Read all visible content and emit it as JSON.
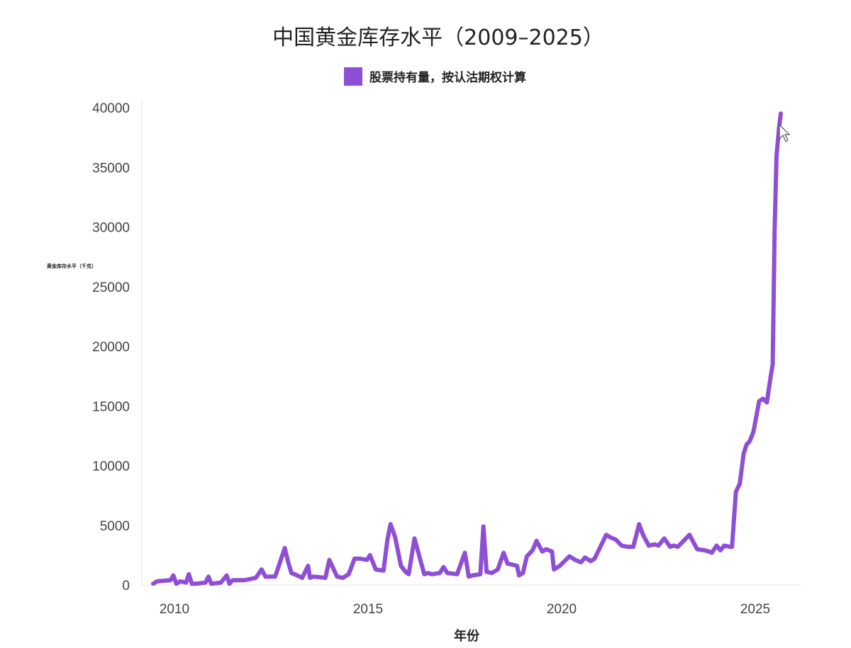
{
  "chart_data": {
    "type": "line",
    "title": "中国黄金库存水平（2009–2025）",
    "xlabel": "年份",
    "ylabel": "黄金库存水平（千克）",
    "xlim": [
      2009.5,
      2026.2
    ],
    "ylim": [
      0,
      41000
    ],
    "x_ticks": [
      2010,
      2015,
      2020,
      2025
    ],
    "y_ticks": [
      0,
      5000,
      10000,
      15000,
      20000,
      25000,
      30000,
      35000,
      40000
    ],
    "grid": false,
    "legend_position": "top-center",
    "series": [
      {
        "name": "股票持有量，按认沽期权计算",
        "color": "#8e4fd6",
        "x": [
          2009.45,
          2009.55,
          2009.9,
          2009.97,
          2010.05,
          2010.15,
          2010.3,
          2010.37,
          2010.45,
          2010.55,
          2010.8,
          2010.88,
          2010.95,
          2011.2,
          2011.35,
          2011.42,
          2011.5,
          2011.8,
          2012.1,
          2012.25,
          2012.35,
          2012.45,
          2012.6,
          2012.85,
          2012.93,
          2013.02,
          2013.1,
          2013.3,
          2013.45,
          2013.5,
          2013.58,
          2013.9,
          2014.0,
          2014.2,
          2014.35,
          2014.5,
          2014.65,
          2014.8,
          2014.97,
          2015.05,
          2015.2,
          2015.4,
          2015.5,
          2015.58,
          2015.7,
          2015.85,
          2015.97,
          2016.05,
          2016.2,
          2016.45,
          2016.55,
          2016.65,
          2016.85,
          2016.95,
          2017.05,
          2017.3,
          2017.5,
          2017.6,
          2017.7,
          2017.9,
          2017.98,
          2018.06,
          2018.2,
          2018.35,
          2018.5,
          2018.6,
          2018.85,
          2018.9,
          2019.0,
          2019.1,
          2019.25,
          2019.35,
          2019.5,
          2019.6,
          2019.75,
          2019.8,
          2019.95,
          2020.2,
          2020.35,
          2020.5,
          2020.6,
          2020.75,
          2020.85,
          2021.0,
          2021.15,
          2021.25,
          2021.4,
          2021.55,
          2021.7,
          2021.85,
          2022.0,
          2022.1,
          2022.25,
          2022.4,
          2022.5,
          2022.65,
          2022.8,
          2022.9,
          2023.0,
          2023.3,
          2023.5,
          2023.7,
          2023.8,
          2023.88,
          2024.0,
          2024.1,
          2024.2,
          2024.35,
          2024.4,
          2024.5,
          2024.6,
          2024.7,
          2024.78,
          2024.85,
          2024.95,
          2025.1,
          2025.2,
          2025.3,
          2025.4,
          2025.45,
          2025.5,
          2025.55,
          2025.62,
          2025.66
        ],
        "values": [
          100,
          300,
          400,
          800,
          100,
          300,
          200,
          900,
          100,
          100,
          200,
          700,
          100,
          200,
          800,
          100,
          400,
          400,
          600,
          1300,
          700,
          700,
          700,
          3100,
          2000,
          1000,
          900,
          600,
          1600,
          600,
          700,
          600,
          2100,
          700,
          600,
          900,
          2200,
          2200,
          2100,
          2500,
          1300,
          1200,
          3800,
          5100,
          4000,
          1600,
          1100,
          900,
          3900,
          900,
          1000,
          900,
          1000,
          1500,
          1000,
          900,
          2700,
          700,
          800,
          900,
          4900,
          1100,
          1000,
          1300,
          2700,
          1800,
          1600,
          800,
          1000,
          2400,
          2900,
          3700,
          2800,
          3000,
          2800,
          1300,
          1600,
          2400,
          2100,
          1900,
          2300,
          2000,
          2200,
          3200,
          4200,
          4000,
          3800,
          3300,
          3200,
          3200,
          5100,
          4200,
          3300,
          3400,
          3300,
          3900,
          3200,
          3300,
          3200,
          4200,
          3000,
          2900,
          2800,
          2700,
          3300,
          2900,
          3300,
          3200,
          3200,
          7800,
          8500,
          11000,
          11800,
          12000,
          12800,
          15400,
          15600,
          15300,
          17500,
          18500,
          29700,
          36000,
          38500,
          39500
        ]
      }
    ]
  }
}
